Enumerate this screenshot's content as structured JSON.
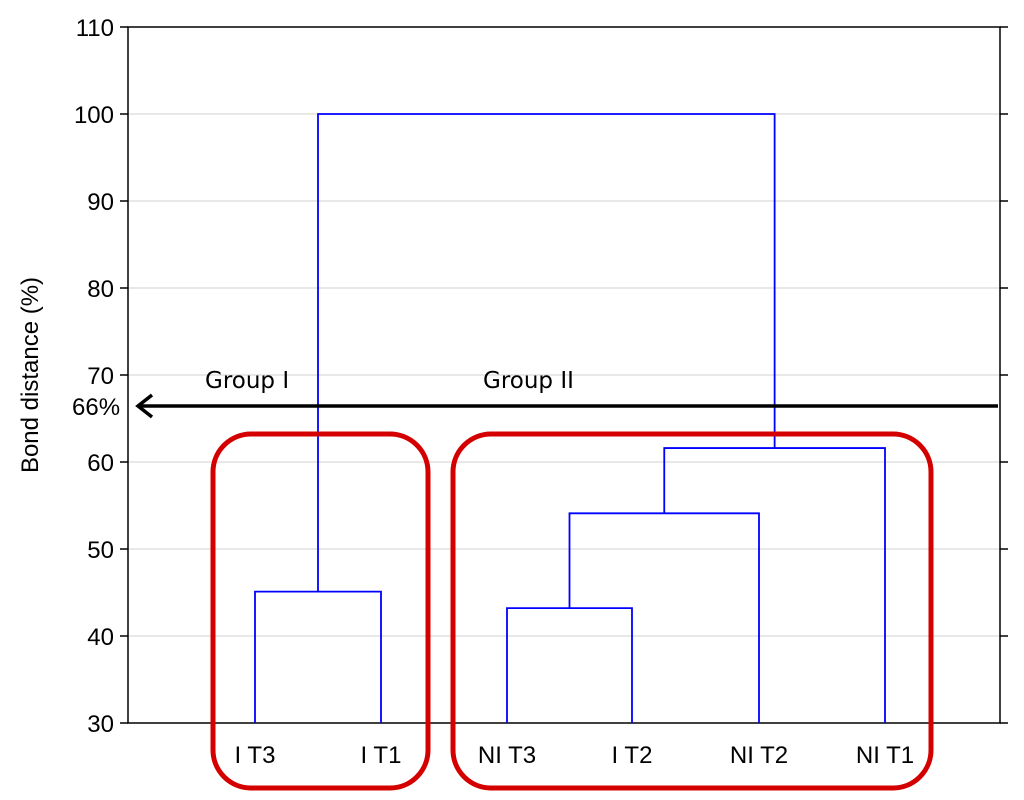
{
  "chart_data": {
    "type": "dendrogram",
    "title": "",
    "xlabel": "",
    "ylabel": "Bond distance (%)",
    "ylim": [
      30,
      110
    ],
    "yticks": [
      30,
      40,
      50,
      60,
      70,
      80,
      90,
      100,
      110
    ],
    "grid": true,
    "leaves": [
      "I T3",
      "I T1",
      "NI T3",
      "I T2",
      "NI T2",
      "NI T1"
    ],
    "merges": [
      {
        "left": "I T3",
        "right": "I T1",
        "height": 45.1
      },
      {
        "left": "NI T3",
        "right": "I T2",
        "height": 43.2
      },
      {
        "left": "NI T3 + I T2",
        "right": "NI T2",
        "height": 54.1
      },
      {
        "left": "NI T3 + I T2 + NI T2",
        "right": "NI T1",
        "height": 61.6
      },
      {
        "left": "Group I",
        "right": "Group II",
        "height": 100
      }
    ],
    "cut_line": {
      "value": 66.5,
      "label": "66%"
    },
    "groups": [
      {
        "name": "Group I",
        "members": [
          "I T3",
          "I T1"
        ]
      },
      {
        "name": "Group II",
        "members": [
          "NI T3",
          "I T2",
          "NI T2",
          "NI T1"
        ]
      }
    ],
    "colors": {
      "tree": "#0000ff",
      "group_box": "#d40000",
      "arrow": "#000000",
      "grid": "#d9d9d9"
    }
  }
}
